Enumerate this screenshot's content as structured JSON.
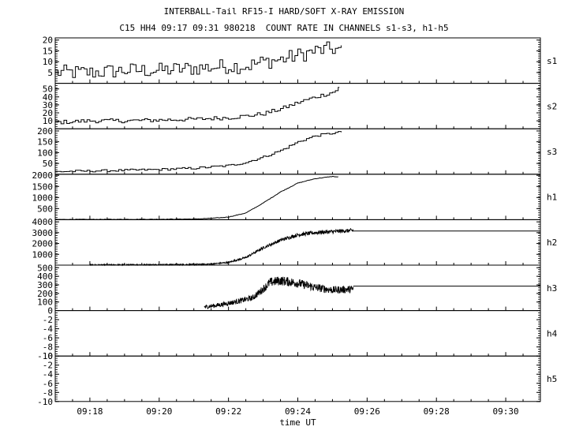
{
  "header": {
    "title": "INTERBALL-Tail RF15-I HARD/SOFT X-RAY EMISSION",
    "subtitle": "C15 HH4 09:17 09:31 980218  COUNT RATE IN CHANNELS s1-s3, h1-h5"
  },
  "chart_data": {
    "type": "line",
    "title": "INTERBALL-Tail RF15-I HARD/SOFT X-RAY EMISSION",
    "subtitle": "C15 HH4 09:17 09:31 980218  COUNT RATE IN CHANNELS s1-s3, h1-h5",
    "xlabel": "time UT",
    "x_ticks": [
      "09:18",
      "09:20",
      "09:22",
      "09:24",
      "09:26",
      "09:28",
      "09:30"
    ],
    "x_range": [
      "09:17:00",
      "09:31:00"
    ],
    "grid": false,
    "panels": [
      {
        "name": "s1",
        "ylim": [
          0,
          21
        ],
        "y_ticks": [
          "5",
          "10",
          "15",
          "20"
        ],
        "style": "step",
        "series": {
          "x_minutes": [
            17.0,
            18.0,
            19.0,
            20.0,
            21.0,
            22.0,
            22.5,
            23.0,
            23.5,
            24.0,
            24.5,
            25.0,
            25.25
          ],
          "values": [
            5,
            5,
            6,
            6,
            7,
            8,
            8,
            10,
            11,
            13,
            15,
            16,
            15
          ]
        },
        "noise": 3.5
      },
      {
        "name": "s2",
        "ylim": [
          0,
          57
        ],
        "y_ticks": [
          "10",
          "20",
          "30",
          "40",
          "50"
        ],
        "style": "step",
        "series": {
          "x_minutes": [
            17.0,
            18.0,
            19.0,
            20.0,
            21.0,
            22.0,
            22.5,
            23.0,
            23.5,
            24.0,
            24.5,
            25.0,
            25.2
          ],
          "values": [
            8,
            10,
            10,
            11,
            12,
            14,
            16,
            19,
            25,
            33,
            40,
            46,
            52
          ]
        },
        "noise": 2.5
      },
      {
        "name": "s3",
        "ylim": [
          0,
          210
        ],
        "y_ticks": [
          "50",
          "100",
          "150",
          "200"
        ],
        "style": "step",
        "series": {
          "x_minutes": [
            17.0,
            18.0,
            19.0,
            20.0,
            21.0,
            22.0,
            22.5,
            23.0,
            23.5,
            24.0,
            24.5,
            25.0,
            25.25
          ],
          "values": [
            12,
            15,
            18,
            22,
            28,
            40,
            55,
            80,
            110,
            150,
            178,
            190,
            195
          ]
        },
        "noise": 5
      },
      {
        "name": "h1",
        "ylim": [
          0,
          2050
        ],
        "y_ticks": [
          "500",
          "1000",
          "1500",
          "2000"
        ],
        "style": "line",
        "series": {
          "x_minutes": [
            17.0,
            18.0,
            19.0,
            20.0,
            21.0,
            21.5,
            22.0,
            22.5,
            23.0,
            23.5,
            24.0,
            24.5,
            25.0,
            25.2
          ],
          "values": [
            10,
            12,
            15,
            20,
            30,
            60,
            120,
            300,
            750,
            1250,
            1650,
            1850,
            1950,
            1920
          ]
        },
        "noise": 12
      },
      {
        "name": "h2",
        "ylim": [
          0,
          4200
        ],
        "y_ticks": [
          "1000",
          "2000",
          "3000",
          "4000"
        ],
        "style": "dense",
        "series": {
          "x_minutes": [
            18.0,
            19.0,
            20.0,
            21.0,
            21.5,
            22.0,
            22.5,
            23.0,
            23.5,
            24.0,
            24.5,
            25.0,
            25.6
          ],
          "values": [
            20,
            30,
            40,
            60,
            100,
            250,
            700,
            1600,
            2300,
            2800,
            3000,
            3100,
            3200
          ]
        },
        "noise": 170,
        "baseline_after": {
          "from_minutes": 25.6,
          "value": 3150
        }
      },
      {
        "name": "h3",
        "ylim": [
          0,
          530
        ],
        "y_ticks": [
          "100",
          "200",
          "300",
          "400",
          "500"
        ],
        "style": "dense",
        "series": {
          "x_minutes": [
            21.3,
            21.8,
            22.3,
            22.7,
            23.0,
            23.2,
            23.5,
            24.0,
            24.5,
            25.0,
            25.6
          ],
          "values": [
            40,
            70,
            110,
            150,
            250,
            330,
            350,
            320,
            270,
            240,
            250
          ]
        },
        "noise": 55,
        "baseline_after": {
          "from_minutes": 25.6,
          "value": 285
        }
      },
      {
        "name": "h4",
        "ylim": [
          -10,
          0
        ],
        "y_ticks": [
          "-10",
          "-8",
          "-6",
          "-4",
          "-2",
          "0"
        ],
        "style": "empty",
        "series": {
          "x_minutes": [],
          "values": []
        }
      },
      {
        "name": "h5",
        "ylim": [
          -10,
          0
        ],
        "y_ticks": [
          "-10",
          "-8",
          "-6",
          "-4",
          "-2",
          "0"
        ],
        "style": "empty",
        "series": {
          "x_minutes": [],
          "values": []
        }
      }
    ]
  }
}
